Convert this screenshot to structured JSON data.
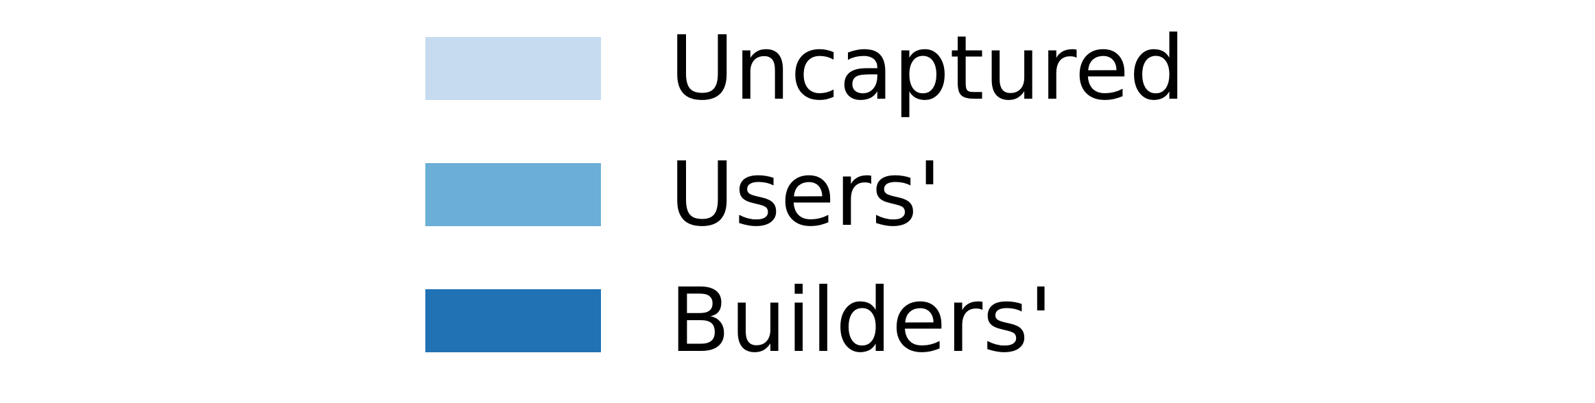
{
  "chart_data": {
    "type": "bar",
    "legend": {
      "placement": "center",
      "entries": [
        {
          "label": "Uncaptured",
          "color": "#c6dbef"
        },
        {
          "label": "Users'",
          "color": "#6baed6"
        },
        {
          "label": "Builders'",
          "color": "#2171b5"
        }
      ]
    }
  }
}
